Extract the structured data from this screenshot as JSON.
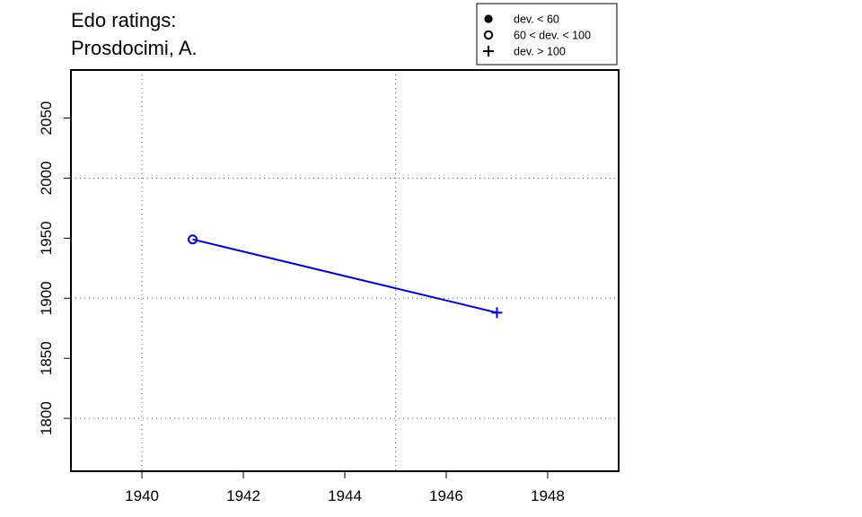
{
  "chart_data": {
    "type": "line",
    "title_lines": [
      "Edo ratings:",
      "Prosdocimi, A."
    ],
    "xlabel": "",
    "ylabel": "",
    "xlim": [
      1938.6,
      1949.4
    ],
    "ylim": [
      1756,
      2090
    ],
    "x_ticks": [
      1940,
      1942,
      1944,
      1946,
      1948
    ],
    "y_ticks": [
      1800,
      1850,
      1900,
      1950,
      2000,
      2050
    ],
    "x_tick_labels": [
      "1940",
      "1942",
      "1944",
      "1946",
      "1948"
    ],
    "y_tick_labels": [
      "1800",
      "1850",
      "1900",
      "1950",
      "2000",
      "2050"
    ],
    "x_grid": [
      1940,
      1945
    ],
    "y_grid": [
      1800,
      1900,
      2000
    ],
    "grid": true,
    "legend_position": "top-right",
    "series_color": "#0000ee",
    "legend": [
      {
        "symbol": "filled-circle",
        "label": "dev. < 60"
      },
      {
        "symbol": "open-circle",
        "label": "60 < dev. < 100"
      },
      {
        "symbol": "plus",
        "label": "dev. > 100"
      }
    ],
    "series": [
      {
        "points": [
          {
            "x": 1941,
            "y": 1949,
            "marker": "open-circle"
          },
          {
            "x": 1947,
            "y": 1888,
            "marker": "plus"
          }
        ]
      }
    ]
  }
}
